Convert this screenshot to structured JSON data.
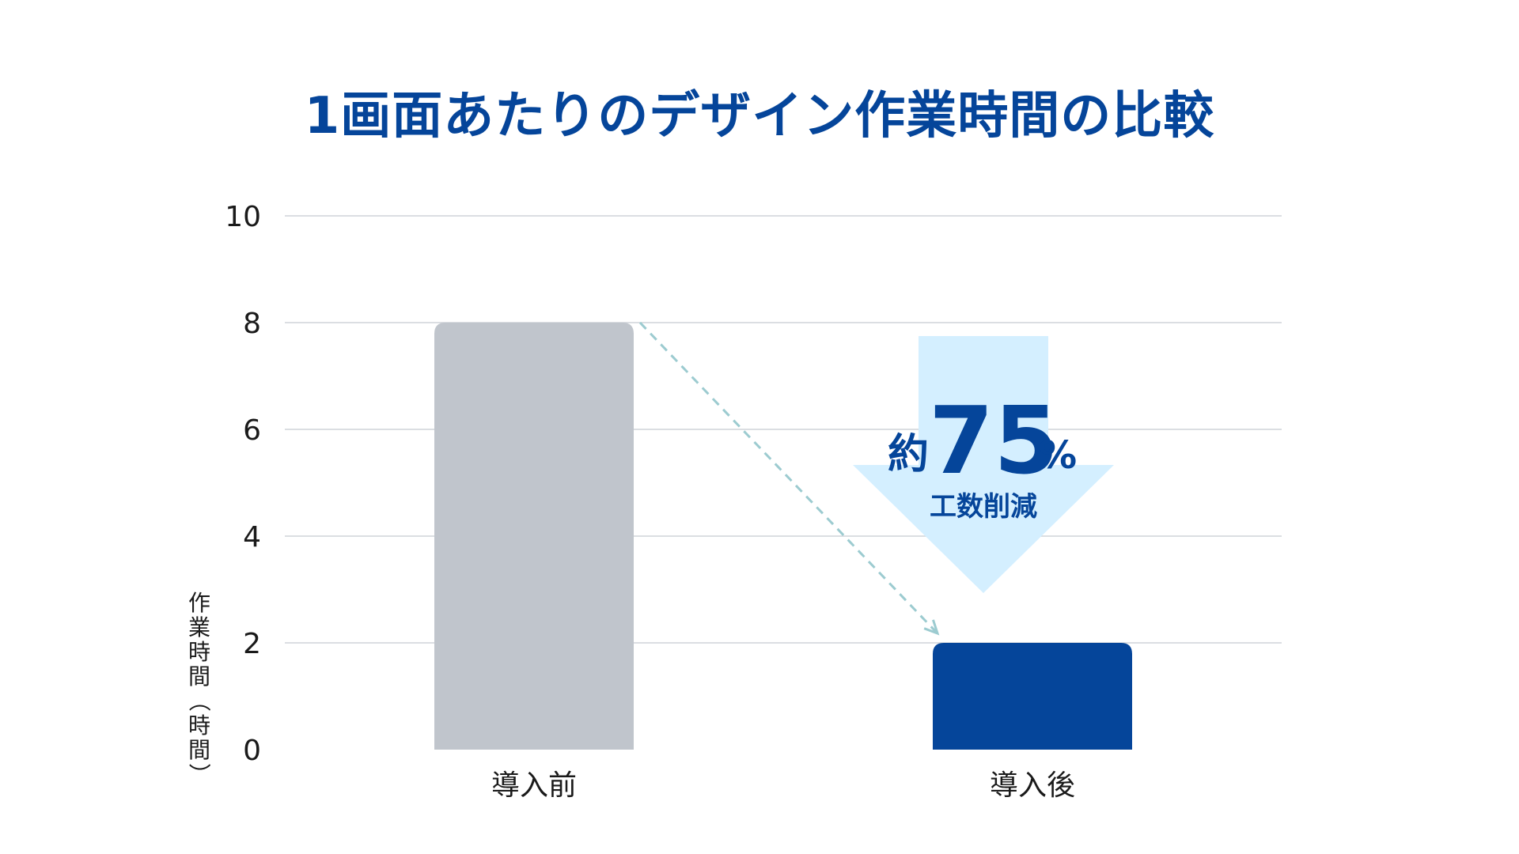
{
  "chart_data": {
    "type": "bar",
    "title": "1画面あたりのデザイン作業時間の比較",
    "ylabel": "作業時間（時間）",
    "xlabel": "",
    "categories": [
      "導入前",
      "導入後"
    ],
    "values": [
      8,
      2
    ],
    "yticks": [
      "0",
      "2",
      "4",
      "6",
      "8",
      "10"
    ],
    "ylim": [
      0,
      10
    ],
    "grid": true,
    "bar_colors": [
      "#c0c5cc",
      "#05459a"
    ],
    "annotation": {
      "prefix": "約",
      "number": "75",
      "suffix": "%",
      "subtitle": "工数削減",
      "arrow_color": "#d4efff",
      "text_color": "#05459a",
      "connector_color": "#9ccbd0"
    }
  }
}
